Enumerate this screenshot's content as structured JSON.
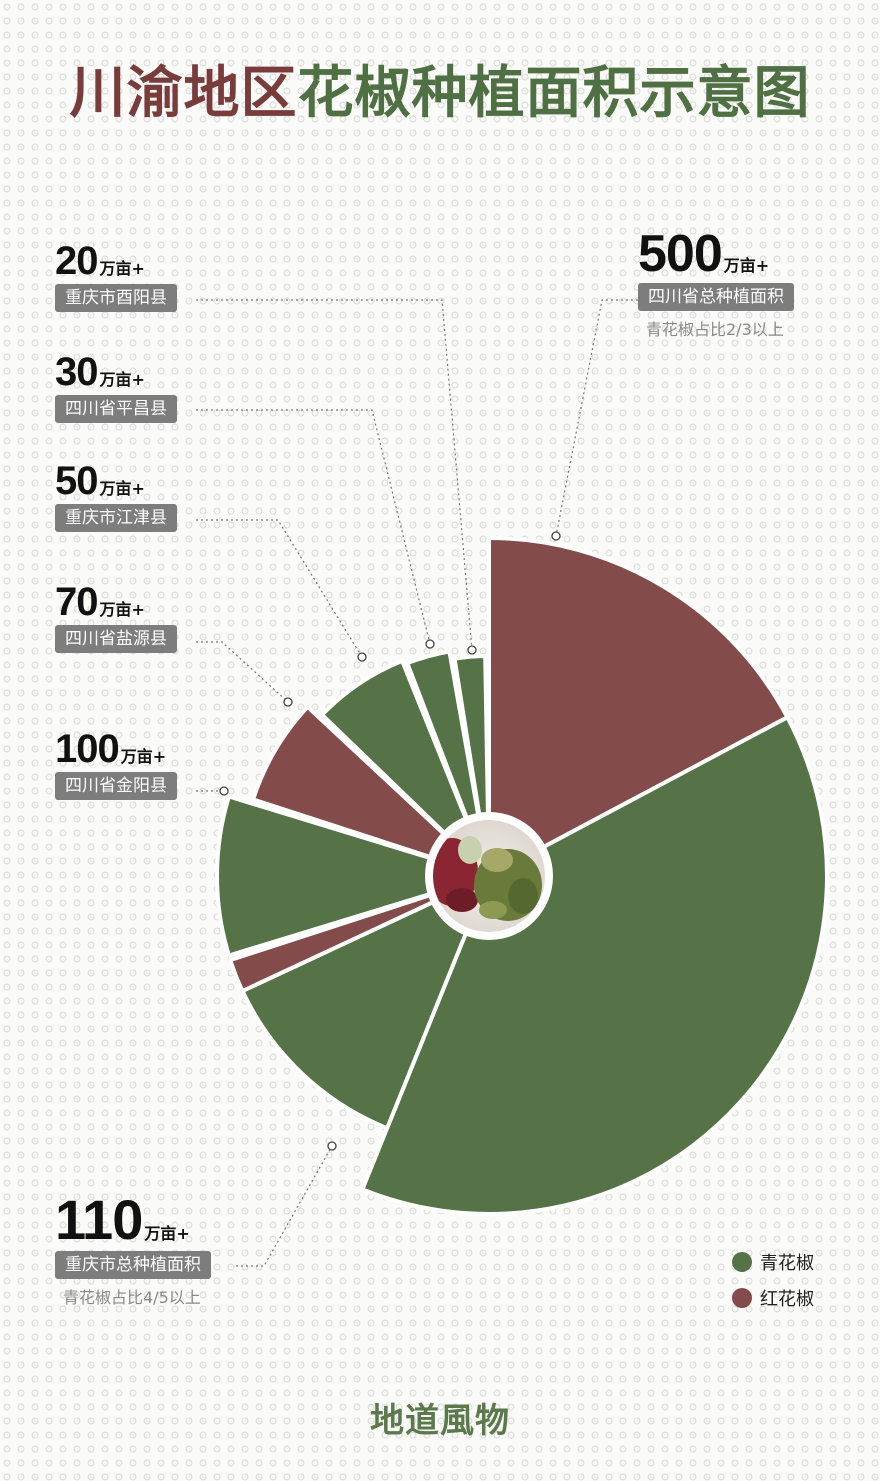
{
  "title": {
    "part1": "川渝地区",
    "part2": "花椒种植面积示意图"
  },
  "colors": {
    "green": "#557347",
    "red": "#834b4a",
    "title_red": "#7a3b3b",
    "title_green": "#4f7042"
  },
  "annotations": [
    {
      "value": "20",
      "unit": "万亩+",
      "label": "重庆市酉阳县"
    },
    {
      "value": "30",
      "unit": "万亩+",
      "label": "四川省平昌县"
    },
    {
      "value": "50",
      "unit": "万亩+",
      "label": "重庆市江津县"
    },
    {
      "value": "70",
      "unit": "万亩+",
      "label": "四川省盐源县"
    },
    {
      "value": "100",
      "unit": "万亩+",
      "label": "四川省金阳县"
    },
    {
      "value": "500",
      "unit": "万亩+",
      "label": "四川省总种植面积",
      "sub": "青花椒占比2/3以上"
    },
    {
      "value": "110",
      "unit": "万亩+",
      "label": "重庆市总种植面积",
      "sub": "青花椒占比4/5以上"
    }
  ],
  "legend": [
    {
      "label": "青花椒",
      "color": "#557347"
    },
    {
      "label": "红花椒",
      "color": "#834b4a"
    }
  ],
  "chart_data": {
    "type": "pie",
    "title": "川渝地区花椒种植面积示意图",
    "unit": "万亩+",
    "categories": [
      "四川省总种植面积",
      "重庆市总种植面积",
      "四川省金阳县",
      "四川省盐源县",
      "重庆市江津县",
      "四川省平昌县",
      "重庆市酉阳县"
    ],
    "values": [
      500,
      110,
      100,
      70,
      50,
      30,
      20
    ],
    "composition": [
      {
        "category": "四川省总种植面积",
        "segments": [
          {
            "type": "红花椒",
            "fraction": 0.33
          },
          {
            "type": "青花椒",
            "fraction": 0.67
          }
        ]
      },
      {
        "category": "重庆市总种植面积",
        "segments": [
          {
            "type": "青花椒",
            "fraction": 0.8
          },
          {
            "type": "红花椒",
            "fraction": 0.2
          }
        ]
      },
      {
        "category": "四川省金阳县",
        "segments": [
          {
            "type": "青花椒",
            "fraction": 1
          }
        ]
      },
      {
        "category": "四川省盐源县",
        "segments": [
          {
            "type": "红花椒",
            "fraction": 1
          }
        ]
      },
      {
        "category": "重庆市江津县",
        "segments": [
          {
            "type": "青花椒",
            "fraction": 1
          }
        ]
      },
      {
        "category": "四川省平昌县",
        "segments": [
          {
            "type": "青花椒",
            "fraction": 1
          }
        ]
      },
      {
        "category": "重庆市酉阳县",
        "segments": [
          {
            "type": "青花椒",
            "fraction": 1
          }
        ]
      }
    ],
    "legend": [
      "青花椒",
      "红花椒"
    ],
    "legend_position": "bottom-right"
  },
  "footer": "地道風物"
}
